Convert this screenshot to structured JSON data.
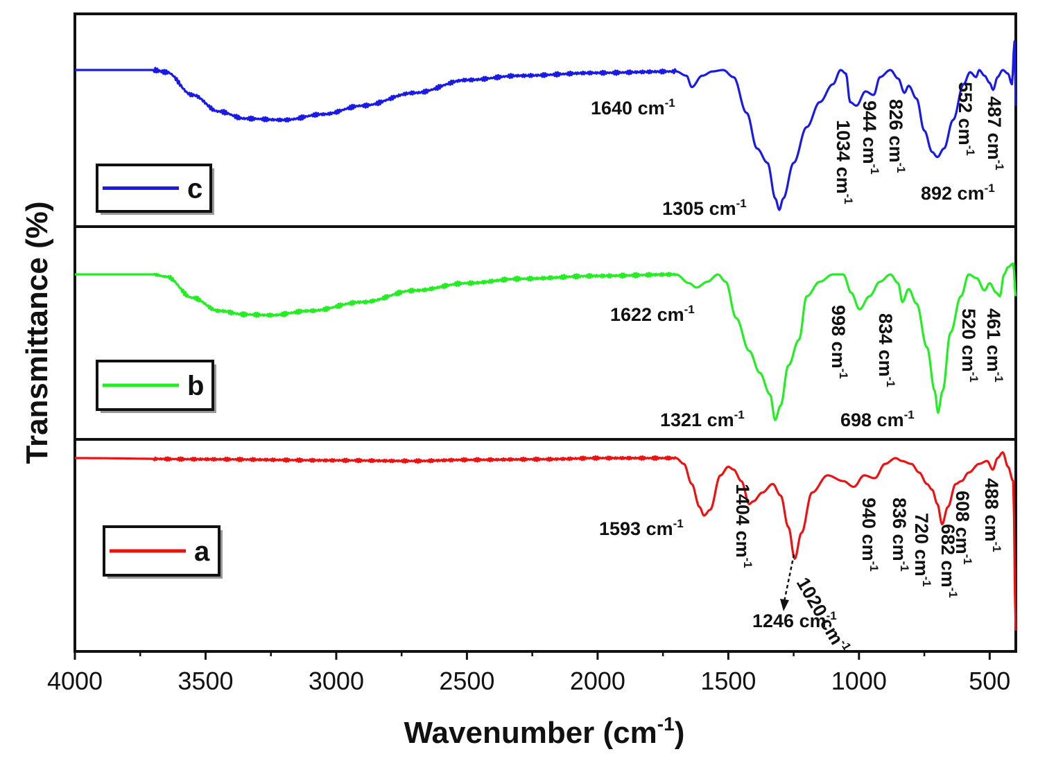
{
  "chart_data": {
    "type": "line",
    "xlabel": "Wavenumber (cm",
    "xlabel_sup": "-1",
    "xlabel_close": ")",
    "ylabel": "Transmittance (%)",
    "xlim": [
      4000,
      400
    ],
    "xticks": [
      {
        "value": 4000,
        "label": "4000"
      },
      {
        "value": 3500,
        "label": "3500"
      },
      {
        "value": 3000,
        "label": "3000"
      },
      {
        "value": 2500,
        "label": "2500"
      },
      {
        "value": 2000,
        "label": "2000"
      },
      {
        "value": 1500,
        "label": "1500"
      },
      {
        "value": 1000,
        "label": "1000"
      },
      {
        "value": 500,
        "label": "500"
      }
    ],
    "grid": false,
    "layout": "three stacked panels, c top, b middle, a bottom",
    "legend_placement": "left, inside each panel",
    "series": [
      {
        "name": "c",
        "color": "#1a1ae6",
        "points": [
          [
            4000,
            0
          ],
          [
            3700,
            0
          ],
          [
            3650,
            0.03
          ],
          [
            3550,
            0.35
          ],
          [
            3450,
            0.58
          ],
          [
            3350,
            0.68
          ],
          [
            3200,
            0.7
          ],
          [
            3050,
            0.62
          ],
          [
            2900,
            0.5
          ],
          [
            2700,
            0.32
          ],
          [
            2500,
            0.14
          ],
          [
            2300,
            0.08
          ],
          [
            2000,
            0.04
          ],
          [
            1700,
            0.02
          ],
          [
            1660,
            0.08
          ],
          [
            1640,
            0.24
          ],
          [
            1600,
            0.08
          ],
          [
            1560,
            0.02
          ],
          [
            1520,
            0.0
          ],
          [
            1480,
            0.1
          ],
          [
            1430,
            0.6
          ],
          [
            1390,
            1.1
          ],
          [
            1350,
            1.3
          ],
          [
            1320,
            1.8
          ],
          [
            1305,
            1.96
          ],
          [
            1290,
            1.8
          ],
          [
            1250,
            1.3
          ],
          [
            1200,
            0.8
          ],
          [
            1150,
            0.45
          ],
          [
            1100,
            0.2
          ],
          [
            1070,
            0.0
          ],
          [
            1050,
            0.05
          ],
          [
            1034,
            0.45
          ],
          [
            1010,
            0.5
          ],
          [
            975,
            0.3
          ],
          [
            944,
            0.35
          ],
          [
            920,
            0.1
          ],
          [
            880,
            0.0
          ],
          [
            850,
            0.12
          ],
          [
            826,
            0.32
          ],
          [
            810,
            0.22
          ],
          [
            780,
            0.4
          ],
          [
            750,
            0.85
          ],
          [
            720,
            1.15
          ],
          [
            700,
            1.22
          ],
          [
            675,
            1.1
          ],
          [
            640,
            0.7
          ],
          [
            600,
            0.2
          ],
          [
            575,
            0.03
          ],
          [
            552,
            0.1
          ],
          [
            540,
            0.0
          ],
          [
            520,
            0.08
          ],
          [
            500,
            0.18
          ],
          [
            487,
            0.28
          ],
          [
            470,
            0.1
          ],
          [
            450,
            0.0
          ],
          [
            430,
            0.05
          ],
          [
            415,
            0.2
          ],
          [
            405,
            -0.4
          ],
          [
            400,
            0.5
          ]
        ]
      },
      {
        "name": "b",
        "color": "#22ee22",
        "points": [
          [
            4000,
            0
          ],
          [
            3700,
            0
          ],
          [
            3650,
            0.03
          ],
          [
            3550,
            0.32
          ],
          [
            3450,
            0.5
          ],
          [
            3350,
            0.55
          ],
          [
            3250,
            0.56
          ],
          [
            3100,
            0.5
          ],
          [
            2900,
            0.38
          ],
          [
            2700,
            0.22
          ],
          [
            2500,
            0.12
          ],
          [
            2300,
            0.06
          ],
          [
            2000,
            0.02
          ],
          [
            1700,
            0.0
          ],
          [
            1650,
            0.12
          ],
          [
            1622,
            0.18
          ],
          [
            1580,
            0.1
          ],
          [
            1540,
            0.0
          ],
          [
            1510,
            0.1
          ],
          [
            1470,
            0.6
          ],
          [
            1420,
            1.05
          ],
          [
            1380,
            1.35
          ],
          [
            1340,
            1.65
          ],
          [
            1321,
            2.0
          ],
          [
            1300,
            1.8
          ],
          [
            1270,
            1.25
          ],
          [
            1230,
            0.9
          ],
          [
            1200,
            0.3
          ],
          [
            1150,
            0.1
          ],
          [
            1100,
            0.0
          ],
          [
            1060,
            0.0
          ],
          [
            1030,
            0.25
          ],
          [
            998,
            0.48
          ],
          [
            960,
            0.3
          ],
          [
            920,
            0.1
          ],
          [
            880,
            0.0
          ],
          [
            850,
            0.12
          ],
          [
            834,
            0.38
          ],
          [
            810,
            0.2
          ],
          [
            780,
            0.4
          ],
          [
            740,
            1.0
          ],
          [
            710,
            1.6
          ],
          [
            698,
            1.9
          ],
          [
            680,
            1.6
          ],
          [
            650,
            0.8
          ],
          [
            610,
            0.3
          ],
          [
            580,
            0.0
          ],
          [
            550,
            0.05
          ],
          [
            520,
            0.22
          ],
          [
            500,
            0.12
          ],
          [
            475,
            0.25
          ],
          [
            461,
            0.3
          ],
          [
            445,
            0.0
          ],
          [
            430,
            -0.1
          ],
          [
            410,
            -0.15
          ],
          [
            400,
            0.3
          ]
        ]
      },
      {
        "name": "a",
        "color": "#ee1111",
        "points": [
          [
            4000,
            0
          ],
          [
            3500,
            0.02
          ],
          [
            3000,
            0.04
          ],
          [
            2700,
            0.05
          ],
          [
            2500,
            0.03
          ],
          [
            2200,
            0.02
          ],
          [
            2000,
            0.0
          ],
          [
            1700,
            0.0
          ],
          [
            1670,
            0.1
          ],
          [
            1640,
            0.45
          ],
          [
            1610,
            0.85
          ],
          [
            1593,
            1.0
          ],
          [
            1570,
            0.9
          ],
          [
            1530,
            0.3
          ],
          [
            1500,
            0.15
          ],
          [
            1480,
            0.2
          ],
          [
            1450,
            0.4
          ],
          [
            1420,
            0.8
          ],
          [
            1404,
            0.75
          ],
          [
            1370,
            0.6
          ],
          [
            1330,
            0.45
          ],
          [
            1300,
            0.65
          ],
          [
            1270,
            1.2
          ],
          [
            1246,
            1.75
          ],
          [
            1220,
            1.3
          ],
          [
            1180,
            0.6
          ],
          [
            1120,
            0.3
          ],
          [
            1060,
            0.4
          ],
          [
            1020,
            0.5
          ],
          [
            980,
            0.3
          ],
          [
            940,
            0.35
          ],
          [
            900,
            0.1
          ],
          [
            860,
            0.0
          ],
          [
            836,
            0.05
          ],
          [
            800,
            0.1
          ],
          [
            770,
            0.25
          ],
          [
            740,
            0.45
          ],
          [
            720,
            0.55
          ],
          [
            700,
            0.8
          ],
          [
            682,
            1.15
          ],
          [
            660,
            0.85
          ],
          [
            630,
            0.45
          ],
          [
            608,
            0.4
          ],
          [
            580,
            0.25
          ],
          [
            540,
            0.1
          ],
          [
            510,
            0.05
          ],
          [
            488,
            0.2
          ],
          [
            470,
            0.0
          ],
          [
            450,
            -0.1
          ],
          [
            430,
            0.15
          ],
          [
            410,
            0.4
          ],
          [
            400,
            3.0
          ]
        ]
      }
    ],
    "annotations": [
      {
        "series": "c",
        "text": "1640 cm",
        "sup": "-1",
        "rotate": false
      },
      {
        "series": "c",
        "text": "1305 cm",
        "sup": "-1",
        "rotate": false
      },
      {
        "series": "c",
        "text": "1034 cm",
        "sup": "-1",
        "rotate": true
      },
      {
        "series": "c",
        "text": "944 cm",
        "sup": "-1",
        "rotate": true
      },
      {
        "series": "c",
        "text": "826 cm",
        "sup": "-1",
        "rotate": true
      },
      {
        "series": "c",
        "text": "892 cm",
        "sup": "-1",
        "rotate": false
      },
      {
        "series": "c",
        "text": "552 cm",
        "sup": "-1",
        "rotate": true
      },
      {
        "series": "c",
        "text": "487 cm",
        "sup": "-1",
        "rotate": true
      },
      {
        "series": "b",
        "text": "1622 cm",
        "sup": "-1",
        "rotate": false
      },
      {
        "series": "b",
        "text": "1321 cm",
        "sup": "-1",
        "rotate": false
      },
      {
        "series": "b",
        "text": "998 cm",
        "sup": "-1",
        "rotate": true
      },
      {
        "series": "b",
        "text": "834 cm",
        "sup": "-1",
        "rotate": true
      },
      {
        "series": "b",
        "text": "698 cm",
        "sup": "-1",
        "rotate": false
      },
      {
        "series": "b",
        "text": "520 cm",
        "sup": "-1",
        "rotate": true
      },
      {
        "series": "b",
        "text": "461 cm",
        "sup": "-1",
        "rotate": true
      },
      {
        "series": "a",
        "text": "1593 cm",
        "sup": "-1",
        "rotate": false
      },
      {
        "series": "a",
        "text": "1404 cm",
        "sup": "-1",
        "rotate": true
      },
      {
        "series": "a",
        "text": "1020 cm",
        "sup": "-1",
        "rotate": true,
        "angle": 60
      },
      {
        "series": "a",
        "text": "1246 cm",
        "sup": "-1",
        "rotate": false
      },
      {
        "series": "a",
        "text": "940 cm",
        "sup": "-1",
        "rotate": true
      },
      {
        "series": "a",
        "text": "836 cm",
        "sup": "-1",
        "rotate": true
      },
      {
        "series": "a",
        "text": "720 cm",
        "sup": "-1",
        "rotate": true
      },
      {
        "series": "a",
        "text": "682 cm",
        "sup": "-1",
        "rotate": true
      },
      {
        "series": "a",
        "text": "608 cm",
        "sup": "-1",
        "rotate": true
      },
      {
        "series": "a",
        "text": "488 cm",
        "sup": "-1",
        "rotate": true
      }
    ]
  }
}
